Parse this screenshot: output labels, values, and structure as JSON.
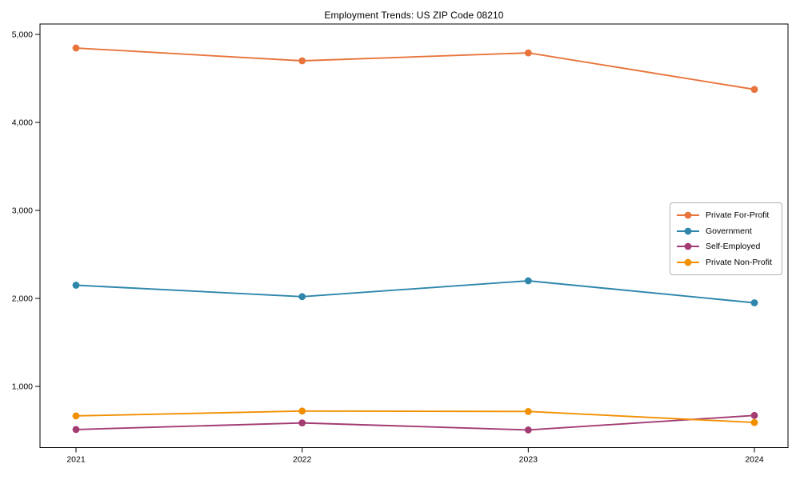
{
  "title": "Employment Trends: US ZIP Code 08210",
  "chart_data": {
    "type": "line",
    "x": [
      2021,
      2022,
      2023,
      2024
    ],
    "xtick_labels": [
      "2021",
      "2022",
      "2023",
      "2024"
    ],
    "yticks": [
      1000,
      2000,
      3000,
      4000,
      5000
    ],
    "ytick_labels": [
      "1,000",
      "2,000",
      "3,000",
      "4,000",
      "5,000"
    ],
    "ylim": [
      300,
      5115
    ],
    "grid": false,
    "marker": "o",
    "legend_position": "center-right",
    "series": [
      {
        "name": "Private For-Profit",
        "color": "#E8743B",
        "values": [
          4845,
          4700,
          4790,
          4375
        ]
      },
      {
        "name": "Government",
        "color": "#2E86AB",
        "values": [
          2150,
          2020,
          2200,
          1950
        ]
      },
      {
        "name": "Self-Employed",
        "color": "#A23B72",
        "values": [
          510,
          585,
          505,
          670
        ]
      },
      {
        "name": "Private Non-Profit",
        "color": "#F18F01",
        "values": [
          665,
          720,
          715,
          590
        ]
      }
    ],
    "axis_color": "#000000",
    "background_color": "#ffffff"
  }
}
